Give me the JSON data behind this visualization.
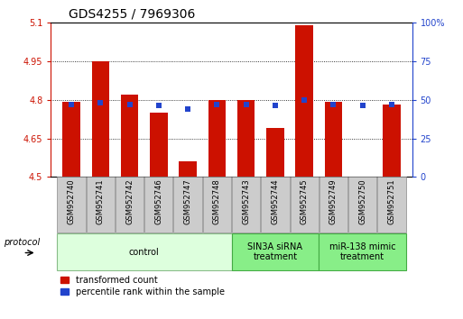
{
  "title": "GDS4255 / 7969306",
  "samples": [
    "GSM952740",
    "GSM952741",
    "GSM952742",
    "GSM952746",
    "GSM952747",
    "GSM952748",
    "GSM952743",
    "GSM952744",
    "GSM952745",
    "GSM952749",
    "GSM952750",
    "GSM952751"
  ],
  "transformed_count": [
    4.79,
    4.95,
    4.82,
    4.75,
    4.56,
    4.8,
    4.8,
    4.69,
    5.09,
    4.79,
    4.5,
    4.78
  ],
  "percentile_rank": [
    47,
    48,
    47,
    46,
    44,
    47,
    47,
    46,
    50,
    47,
    46,
    47
  ],
  "ymin": 4.5,
  "ymax": 5.1,
  "yticks": [
    4.5,
    4.65,
    4.8,
    4.95,
    5.1
  ],
  "ytick_labels": [
    "4.5",
    "4.65",
    "4.8",
    "4.95",
    "5.1"
  ],
  "y2ticks": [
    0,
    25,
    50,
    75,
    100
  ],
  "y2tick_labels": [
    "0",
    "25",
    "50",
    "75",
    "100%"
  ],
  "bar_color": "#cc1100",
  "dot_color": "#2244cc",
  "groups": [
    {
      "label": "control",
      "start": 0,
      "end": 5,
      "color": "#ddffdd",
      "edge_color": "#88bb88"
    },
    {
      "label": "SIN3A siRNA\ntreatment",
      "start": 6,
      "end": 8,
      "color": "#88ee88",
      "edge_color": "#44aa44"
    },
    {
      "label": "miR-138 mimic\ntreatment",
      "start": 9,
      "end": 11,
      "color": "#88ee88",
      "edge_color": "#44aa44"
    }
  ],
  "bar_width": 0.6,
  "title_fontsize": 10,
  "tick_fontsize": 7,
  "left_color": "#cc1100",
  "right_color": "#2244cc",
  "bg_color": "#ffffff"
}
